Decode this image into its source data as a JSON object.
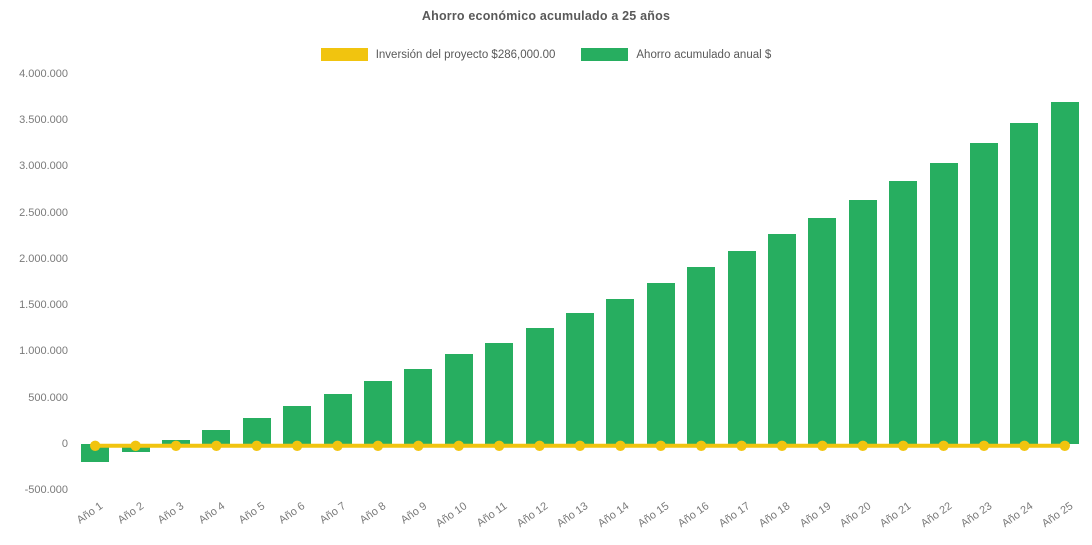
{
  "title": "Ahorro económico acumulado a 25 años",
  "legend": {
    "investment": {
      "label": "Inversión del proyecto $286,000.00",
      "color": "#F1C40F"
    },
    "savings": {
      "label": "Ahorro acumulado anual $",
      "color": "#27AE60"
    }
  },
  "colors": {
    "bar": "#27AE60",
    "line": "#F1C40F",
    "title_text": "#595959",
    "axis_text": "#7A7A7A",
    "background": "#FFFFFF"
  },
  "chart_data": {
    "type": "bar",
    "title": "Ahorro económico acumulado a 25 años",
    "categories": [
      "Año 1",
      "Año 2",
      "Año 3",
      "Año 4",
      "Año 5",
      "Año 6",
      "Año 7",
      "Año 8",
      "Año 9",
      "Año 10",
      "Año 11",
      "Año 12",
      "Año 13",
      "Año 14",
      "Año 15",
      "Año 16",
      "Año 17",
      "Año 18",
      "Año 19",
      "Año 20",
      "Año 21",
      "Año 22",
      "Año 23",
      "Año 24",
      "Año 25"
    ],
    "series": [
      {
        "name": "Ahorro acumulado anual $",
        "type": "bar",
        "color": "#27AE60",
        "values": [
          -195000,
          -90000,
          40000,
          150000,
          275000,
          405000,
          535000,
          680000,
          805000,
          970000,
          1095000,
          1250000,
          1415000,
          1570000,
          1735000,
          1910000,
          2090000,
          2265000,
          2445000,
          2640000,
          2840000,
          3040000,
          3255000,
          3475000,
          3700000
        ]
      },
      {
        "name": "Inversión del proyecto $286,000.00",
        "type": "line",
        "color": "#F1C40F",
        "marker": "circle",
        "plotted_value": 0
      }
    ],
    "xlabel": "",
    "ylabel": "",
    "ylim": [
      -500000,
      4000000
    ],
    "yticks": [
      4000000,
      3500000,
      3000000,
      2500000,
      2000000,
      1500000,
      1000000,
      500000,
      0,
      -500000
    ],
    "ytick_labels": [
      "4.000.000",
      "3.500.000",
      "3.000.000",
      "2.500.000",
      "2.000.000",
      "1.500.000",
      "1.000.000",
      "500.000",
      "0",
      "-500.000"
    ],
    "grid": false,
    "legend_position": "top"
  }
}
